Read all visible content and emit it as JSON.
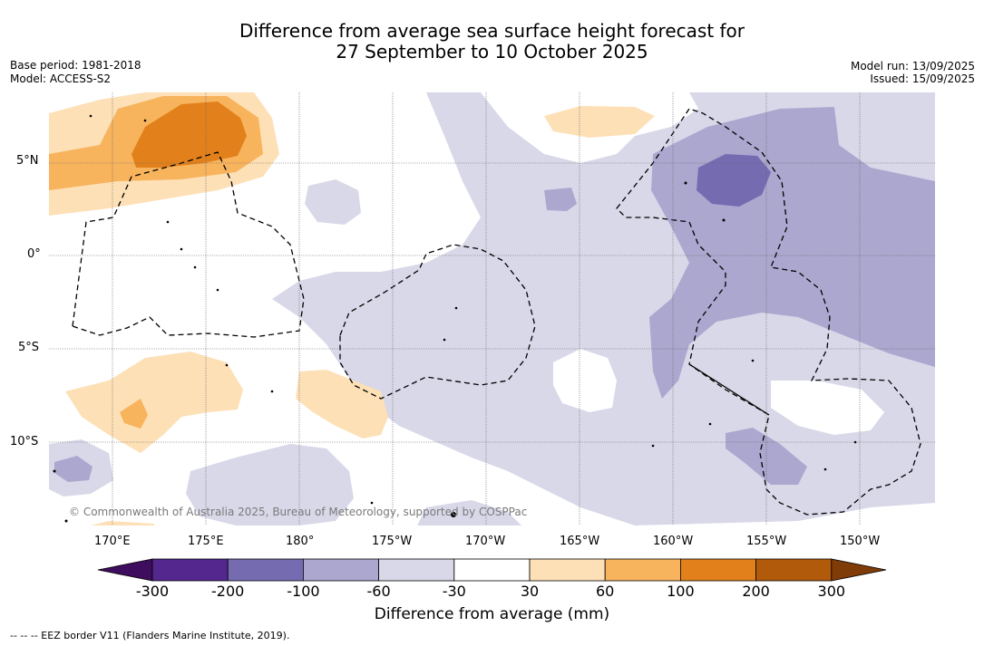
{
  "title_line1": "Difference from average sea surface height forecast for",
  "title_line2": "27 September to 10 October 2025",
  "base_period": "Base period: 1981-2018",
  "model": "Model: ACCESS-S2",
  "model_run": "Model run: 13/09/2025",
  "issued": "Issued: 15/09/2025",
  "lat_labels": [
    "5°N",
    "0°",
    "5°S",
    "10°S"
  ],
  "lon_labels": [
    "170°E",
    "175°E",
    "180°",
    "175°W",
    "170°W",
    "165°W",
    "160°W",
    "155°W",
    "150°W"
  ],
  "copyright": "© Commonwealth of Australia 2025, Bureau of Meteorology, supported by COSPPac",
  "colorbar": {
    "title": "Difference from average (mm)",
    "ticks": [
      "-300",
      "-200",
      "-100",
      "-60",
      "-30",
      "30",
      "60",
      "100",
      "200",
      "300"
    ],
    "colors": [
      "#54278f",
      "#756bb1",
      "#aba7cf",
      "#d8d8e9",
      "#ffffff",
      "#fde0b6",
      "#f8b35d",
      "#e2811b",
      "#b25a0c"
    ],
    "under_color": "#3f0d5e",
    "over_color": "#7f3b08"
  },
  "eez_note": "-- -- -- EEZ border V11 (Flanders Marine Institute, 2019)."
}
